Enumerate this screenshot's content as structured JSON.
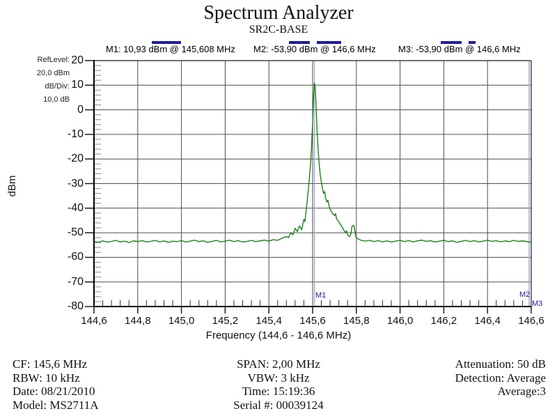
{
  "header": {
    "title": "Spectrum Analyzer",
    "subtitle": "SR2C-BASE"
  },
  "marker_readouts": {
    "m1": "M1: 10,93 dBm @ 145,608 MHz",
    "m2": "M2: -53,90 dBm @ 146,6 MHz",
    "m3": "M3: -53,90 dBm @ 146,6 MHz"
  },
  "settings_panel": {
    "ref_level_label": "RefLevel:",
    "ref_level_value": "20,0 dBm",
    "db_per_div_label": "dB/Div:",
    "db_per_div_value": "10,0 dB"
  },
  "plot": {
    "y_axis_title": "dBm",
    "x_axis_title": "Frequency (144,6 - 146,6 MHz)",
    "marker_flags": {
      "m1": "M1",
      "m2": "M2",
      "m3": "M3"
    }
  },
  "footer": {
    "left": [
      "CF: 145,6 MHz",
      "RBW: 10 kHz",
      "Date: 08/21/2010",
      "Model: MS2711A"
    ],
    "center": [
      "SPAN: 2,00 MHz",
      "VBW: 3 kHz",
      "Time: 15:19:36",
      "Serial #: 00039124"
    ],
    "right": [
      "Attenuation: 50 dB",
      "Detection: Average",
      "Average:3"
    ]
  },
  "chart_data": {
    "type": "line",
    "title": "Spectrum Analyzer",
    "subtitle": "SR2C-BASE",
    "xlabel": "Frequency (144,6 - 146,6 MHz)",
    "ylabel": "dBm",
    "xlim": [
      144.6,
      146.6
    ],
    "ylim": [
      -80,
      20
    ],
    "grid": true,
    "ref_level_dbm": 20.0,
    "db_per_div": 10.0,
    "x_ticks": [
      144.6,
      144.8,
      145.0,
      145.2,
      145.4,
      145.6,
      145.8,
      146.0,
      146.2,
      146.4,
      146.6
    ],
    "x_tick_labels": [
      "144,6",
      "144,8",
      "145,0",
      "145,2",
      "145,4",
      "145,6",
      "145,8",
      "146,0",
      "146,2",
      "146,4",
      "146,6"
    ],
    "y_ticks": [
      20,
      10,
      0,
      -10,
      -20,
      -30,
      -40,
      -50,
      -60,
      -70,
      -80
    ],
    "y_tick_labels": [
      "20",
      "10",
      "0",
      "-10",
      "-20",
      "-30",
      "-40",
      "-50",
      "-60",
      "-70",
      "-80"
    ],
    "x_minor_step": 0.04,
    "y_minor_step": 2,
    "trace_color": "#0b7d0b",
    "marker_color": "#1d1d9e",
    "marker_line_color": "#a9a9cd",
    "markers": [
      {
        "name": "M1",
        "freq_mhz": 145.608,
        "level_dbm": 10.93
      },
      {
        "name": "M2",
        "freq_mhz": 146.6,
        "level_dbm": -53.9
      },
      {
        "name": "M3",
        "freq_mhz": 146.6,
        "level_dbm": -53.9
      }
    ],
    "series": [
      {
        "name": "trace",
        "points": [
          [
            144.6,
            -53.6
          ],
          [
            144.62,
            -53.9
          ],
          [
            144.64,
            -53.3
          ],
          [
            144.66,
            -53.8
          ],
          [
            144.68,
            -53.5
          ],
          [
            144.7,
            -53.1
          ],
          [
            144.72,
            -53.7
          ],
          [
            144.74,
            -53.4
          ],
          [
            144.76,
            -54.0
          ],
          [
            144.78,
            -53.3
          ],
          [
            144.8,
            -53.6
          ],
          [
            144.82,
            -53.2
          ],
          [
            144.84,
            -53.8
          ],
          [
            144.86,
            -53.5
          ],
          [
            144.88,
            -53.1
          ],
          [
            144.9,
            -53.7
          ],
          [
            144.92,
            -53.3
          ],
          [
            144.94,
            -53.9
          ],
          [
            144.96,
            -53.4
          ],
          [
            144.98,
            -53.6
          ],
          [
            145.0,
            -53.2
          ],
          [
            145.02,
            -53.8
          ],
          [
            145.04,
            -53.4
          ],
          [
            145.06,
            -53.0
          ],
          [
            145.08,
            -53.6
          ],
          [
            145.1,
            -53.3
          ],
          [
            145.12,
            -53.9
          ],
          [
            145.14,
            -53.5
          ],
          [
            145.16,
            -53.1
          ],
          [
            145.18,
            -53.7
          ],
          [
            145.2,
            -53.4
          ],
          [
            145.22,
            -53.0
          ],
          [
            145.24,
            -53.6
          ],
          [
            145.26,
            -53.2
          ],
          [
            145.28,
            -53.8
          ],
          [
            145.3,
            -53.5
          ],
          [
            145.32,
            -53.1
          ],
          [
            145.34,
            -53.6
          ],
          [
            145.36,
            -53.3
          ],
          [
            145.38,
            -53.0
          ],
          [
            145.4,
            -53.4
          ],
          [
            145.42,
            -52.8
          ],
          [
            145.44,
            -53.1
          ],
          [
            145.46,
            -52.2
          ],
          [
            145.48,
            -51.5
          ],
          [
            145.49,
            -52.0
          ],
          [
            145.5,
            -50.0
          ],
          [
            145.51,
            -50.8
          ],
          [
            145.52,
            -48.2
          ],
          [
            145.53,
            -49.5
          ],
          [
            145.54,
            -47.2
          ],
          [
            145.55,
            -48.8
          ],
          [
            145.555,
            -46.5
          ],
          [
            145.56,
            -44.5
          ],
          [
            145.565,
            -45.5
          ],
          [
            145.57,
            -41.0
          ],
          [
            145.575,
            -37.5
          ],
          [
            145.58,
            -33.0
          ],
          [
            145.585,
            -28.0
          ],
          [
            145.59,
            -22.5
          ],
          [
            145.595,
            -15.5
          ],
          [
            145.6,
            -5.0
          ],
          [
            145.604,
            6.0
          ],
          [
            145.608,
            10.93
          ],
          [
            145.612,
            9.0
          ],
          [
            145.616,
            1.5
          ],
          [
            145.62,
            -8.0
          ],
          [
            145.625,
            -16.0
          ],
          [
            145.63,
            -22.0
          ],
          [
            145.635,
            -26.5
          ],
          [
            145.64,
            -29.5
          ],
          [
            145.645,
            -32.0
          ],
          [
            145.65,
            -34.0
          ],
          [
            145.655,
            -33.2
          ],
          [
            145.66,
            -36.0
          ],
          [
            145.665,
            -37.5
          ],
          [
            145.67,
            -36.8
          ],
          [
            145.675,
            -39.0
          ],
          [
            145.68,
            -40.5
          ],
          [
            145.69,
            -42.0
          ],
          [
            145.7,
            -43.0
          ],
          [
            145.705,
            -42.2
          ],
          [
            145.71,
            -44.5
          ],
          [
            145.72,
            -45.5
          ],
          [
            145.73,
            -47.0
          ],
          [
            145.74,
            -48.5
          ],
          [
            145.75,
            -50.0
          ],
          [
            145.755,
            -49.2
          ],
          [
            145.76,
            -51.0
          ],
          [
            145.77,
            -51.5
          ],
          [
            145.775,
            -50.5
          ],
          [
            145.78,
            -47.5
          ],
          [
            145.785,
            -47.0
          ],
          [
            145.79,
            -47.4
          ],
          [
            145.795,
            -50.5
          ],
          [
            145.8,
            -52.0
          ],
          [
            145.81,
            -52.6
          ],
          [
            145.82,
            -53.0
          ],
          [
            145.84,
            -53.4
          ],
          [
            145.86,
            -53.1
          ],
          [
            145.88,
            -53.6
          ],
          [
            145.9,
            -53.2
          ],
          [
            145.92,
            -53.7
          ],
          [
            145.94,
            -53.3
          ],
          [
            145.96,
            -53.8
          ],
          [
            145.98,
            -53.4
          ],
          [
            146.0,
            -53.1
          ],
          [
            146.02,
            -53.6
          ],
          [
            146.04,
            -53.2
          ],
          [
            146.06,
            -53.7
          ],
          [
            146.08,
            -53.3
          ],
          [
            146.1,
            -53.0
          ],
          [
            146.12,
            -53.5
          ],
          [
            146.14,
            -53.2
          ],
          [
            146.16,
            -53.8
          ],
          [
            146.18,
            -53.4
          ],
          [
            146.2,
            -53.1
          ],
          [
            146.22,
            -53.6
          ],
          [
            146.24,
            -53.3
          ],
          [
            146.26,
            -53.9
          ],
          [
            146.28,
            -53.5
          ],
          [
            146.3,
            -53.1
          ],
          [
            146.32,
            -53.6
          ],
          [
            146.34,
            -53.2
          ],
          [
            146.36,
            -53.7
          ],
          [
            146.38,
            -53.4
          ],
          [
            146.4,
            -53.0
          ],
          [
            146.42,
            -53.5
          ],
          [
            146.44,
            -53.2
          ],
          [
            146.46,
            -53.7
          ],
          [
            146.48,
            -53.3
          ],
          [
            146.5,
            -53.6
          ],
          [
            146.52,
            -53.1
          ],
          [
            146.54,
            -53.5
          ],
          [
            146.56,
            -53.3
          ],
          [
            146.58,
            -53.6
          ],
          [
            146.6,
            -53.9
          ]
        ]
      }
    ]
  }
}
